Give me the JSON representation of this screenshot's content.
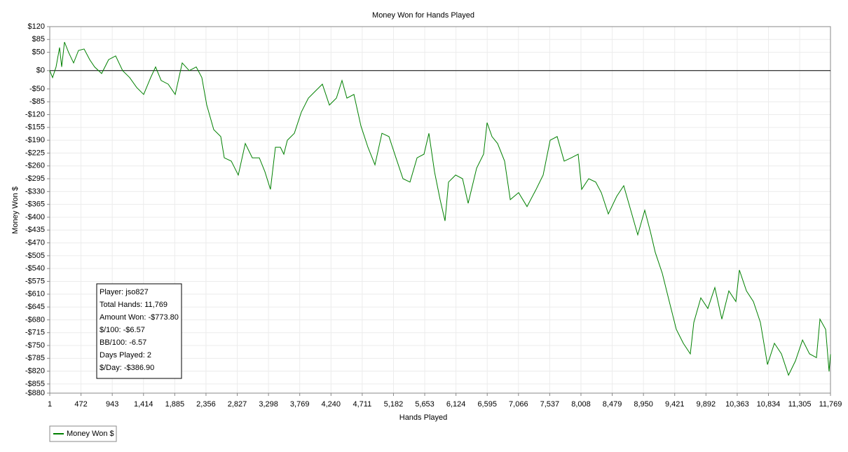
{
  "chart_data": {
    "type": "line",
    "title": "Money Won for Hands Played",
    "x_label": "Hands Played",
    "y_label": "Money Won $",
    "grid": true,
    "zero_line": true,
    "legend": "bottom-left",
    "xlim": [
      1,
      11769
    ],
    "ylim": [
      -880,
      120
    ],
    "xticks": [
      1,
      472,
      943,
      {
        "value": 1414,
        "label": "1,414"
      },
      {
        "value": 1885,
        "label": "1,885"
      },
      {
        "value": 2356,
        "label": "2,356"
      },
      {
        "value": 2827,
        "label": "2,827"
      },
      {
        "value": 3298,
        "label": "3,298"
      },
      {
        "value": 3769,
        "label": "3,769"
      },
      {
        "value": 4240,
        "label": "4,240"
      },
      {
        "value": 4711,
        "label": "4,711"
      },
      {
        "value": 5182,
        "label": "5,182"
      },
      {
        "value": 5653,
        "label": "5,653"
      },
      {
        "value": 6124,
        "label": "6,124"
      },
      {
        "value": 6595,
        "label": "6,595"
      },
      {
        "value": 7066,
        "label": "7,066"
      },
      {
        "value": 7537,
        "label": "7,537"
      },
      {
        "value": 8008,
        "label": "8,008"
      },
      {
        "value": 8479,
        "label": "8,479"
      },
      {
        "value": 8950,
        "label": "8,950"
      },
      {
        "value": 9421,
        "label": "9,421"
      },
      {
        "value": 9892,
        "label": "9,892"
      },
      {
        "value": 10363,
        "label": "10,363"
      },
      {
        "value": 10834,
        "label": "10,834"
      },
      {
        "value": 11305,
        "label": "11,305"
      },
      {
        "value": 11769,
        "label": "11,769"
      }
    ],
    "yticks": [
      {
        "value": 120,
        "label": "$120"
      },
      {
        "value": 85,
        "label": "$85"
      },
      {
        "value": 50,
        "label": "$50"
      },
      {
        "value": 0,
        "label": "$0"
      },
      {
        "value": -50,
        "label": "-$50"
      },
      {
        "value": -85,
        "label": "-$85"
      },
      {
        "value": -120,
        "label": "-$120"
      },
      {
        "value": -155,
        "label": "-$155"
      },
      {
        "value": -190,
        "label": "-$190"
      },
      {
        "value": -225,
        "label": "-$225"
      },
      {
        "value": -260,
        "label": "-$260"
      },
      {
        "value": -295,
        "label": "-$295"
      },
      {
        "value": -330,
        "label": "-$330"
      },
      {
        "value": -365,
        "label": "-$365"
      },
      {
        "value": -400,
        "label": "-$400"
      },
      {
        "value": -435,
        "label": "-$435"
      },
      {
        "value": -470,
        "label": "-$470"
      },
      {
        "value": -505,
        "label": "-$505"
      },
      {
        "value": -540,
        "label": "-$540"
      },
      {
        "value": -575,
        "label": "-$575"
      },
      {
        "value": -610,
        "label": "-$610"
      },
      {
        "value": -645,
        "label": "-$645"
      },
      {
        "value": -680,
        "label": "-$680"
      },
      {
        "value": -715,
        "label": "-$715"
      },
      {
        "value": -750,
        "label": "-$750"
      },
      {
        "value": -785,
        "label": "-$785"
      },
      {
        "value": -820,
        "label": "-$820"
      },
      {
        "value": -855,
        "label": "-$855"
      },
      {
        "value": -880,
        "label": "-$880"
      }
    ],
    "annotations": [
      "Player: jso827",
      "Total Hands: 11,769",
      "Amount Won: -$773.80",
      "$/100: -$6.57",
      "BB/100: -6.57",
      "Days Played: 2",
      "$/Day: -$386.90"
    ],
    "x": [
      1,
      43,
      96,
      149,
      181,
      223,
      286,
      360,
      434,
      519,
      603,
      677,
      783,
      888,
      994,
      1100,
      1205,
      1311,
      1417,
      1522,
      1596,
      1681,
      1786,
      1892,
      1998,
      2103,
      2209,
      2293,
      2367,
      2473,
      2579,
      2631,
      2737,
      2843,
      2948,
      3054,
      3160,
      3244,
      3328,
      3402,
      3477,
      3529,
      3582,
      3688,
      3793,
      3899,
      4005,
      4110,
      4216,
      4322,
      4406,
      4480,
      4586,
      4691,
      4797,
      4903,
      5008,
      5114,
      5220,
      5325,
      5431,
      5537,
      5642,
      5716,
      5801,
      5885,
      5959,
      6012,
      6118,
      6223,
      6308,
      6435,
      6540,
      6593,
      6667,
      6751,
      6857,
      6942,
      7068,
      7195,
      7332,
      7438,
      7544,
      7649,
      7755,
      7861,
      7966,
      8019,
      8125,
      8230,
      8315,
      8420,
      8547,
      8653,
      8758,
      8864,
      8970,
      9054,
      9128,
      9234,
      9339,
      9445,
      9551,
      9656,
      9709,
      9815,
      9920,
      10026,
      10132,
      10237,
      10343,
      10396,
      10502,
      10607,
      10713,
      10819,
      10924,
      11030,
      11136,
      11241,
      11347,
      11453,
      11558,
      11611,
      11696,
      11748,
      11769
    ],
    "series": [
      {
        "name": "Money Won $",
        "color": "#008000",
        "values": [
          0,
          -19,
          10,
          63,
          10,
          78,
          49,
          21,
          55,
          59,
          30,
          10,
          -8,
          30,
          40,
          0,
          -19,
          -46,
          -65,
          -19,
          10,
          -27,
          -37,
          -65,
          21,
          0,
          10,
          -19,
          -94,
          -161,
          -180,
          -238,
          -247,
          -285,
          -199,
          -238,
          -238,
          -276,
          -324,
          -209,
          -209,
          -228,
          -190,
          -171,
          -113,
          -75,
          -56,
          -37,
          -94,
          -75,
          -27,
          -75,
          -65,
          -151,
          -209,
          -257,
          -171,
          -180,
          -238,
          -295,
          -304,
          -238,
          -228,
          -171,
          -276,
          -352,
          -410,
          -304,
          -285,
          -295,
          -362,
          -266,
          -228,
          -142,
          -180,
          -199,
          -247,
          -352,
          -333,
          -371,
          -324,
          -285,
          -190,
          -180,
          -247,
          -238,
          -228,
          -324,
          -295,
          -304,
          -333,
          -391,
          -343,
          -314,
          -381,
          -448,
          -381,
          -439,
          -496,
          -553,
          -630,
          -706,
          -744,
          -773,
          -687,
          -620,
          -649,
          -592,
          -678,
          -601,
          -630,
          -544,
          -601,
          -630,
          -687,
          -802,
          -744,
          -773,
          -831,
          -792,
          -735,
          -773,
          -783,
          -678,
          -706,
          -821,
          -773.8
        ]
      }
    ]
  }
}
